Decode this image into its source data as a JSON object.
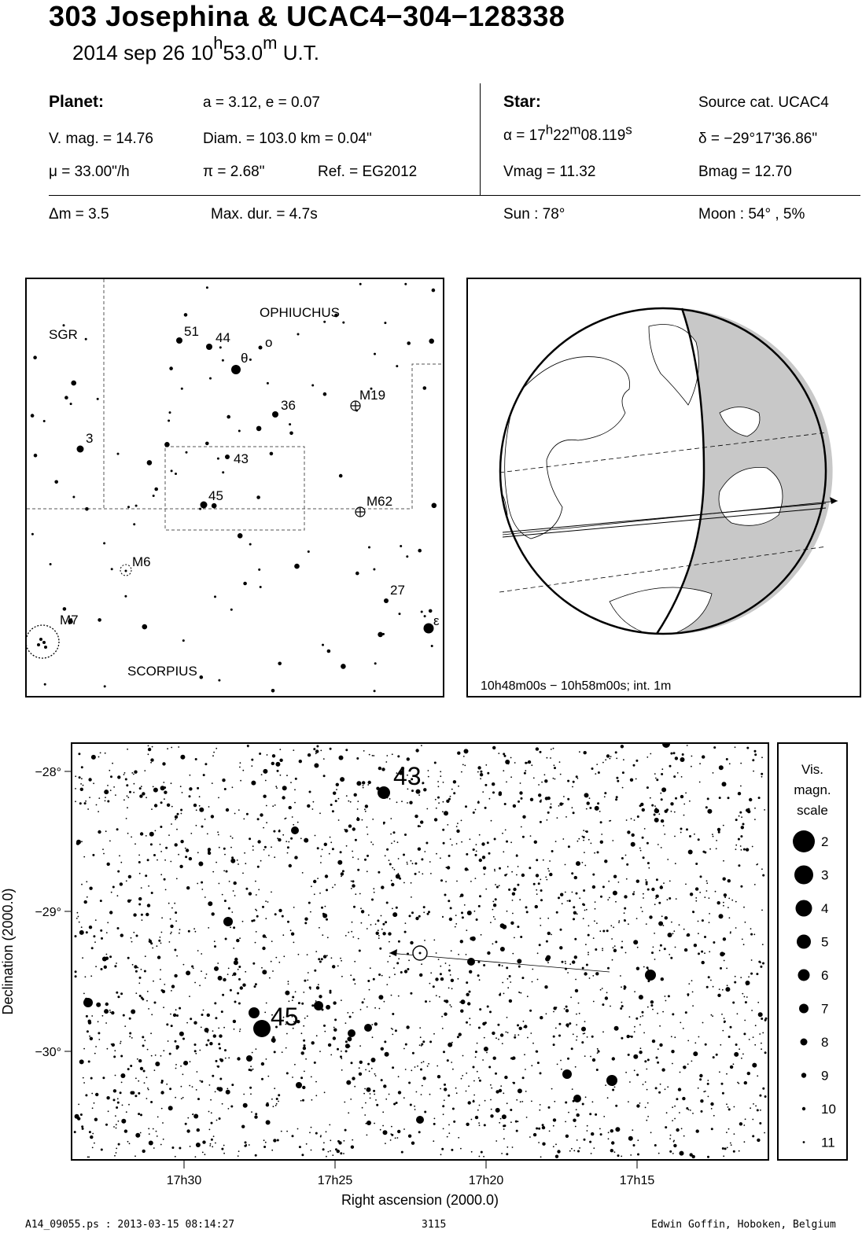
{
  "header": {
    "title": "303 Josephina  &  UCAC4−304−128338",
    "date": "2014 sep 26  10",
    "time_h_sup": "h",
    "time_min": "53.0",
    "time_m_sup": "m",
    "time_suffix": " U.T."
  },
  "planet": {
    "heading": "Planet:",
    "orbit": "a = 3.12, e = 0.07",
    "vmag": "V. mag. = 14.76",
    "diam": "Diam. = 103.0 km = 0.04\"",
    "mu": "μ =  33.00\"/h",
    "pi": "π =  2.68\"",
    "ref": "Ref. = EG2012"
  },
  "star": {
    "heading": "Star:",
    "source": "Source cat.  UCAC4",
    "alpha_pre": "α = 17",
    "alpha_h": "h",
    "alpha_mid": "22",
    "alpha_m": "m",
    "alpha_sec": "08.119",
    "alpha_s": "s",
    "delta": "δ = −29°17'36.86\"",
    "vmag": "Vmag = 11.32",
    "bmag": "Bmag = 12.70"
  },
  "event": {
    "dm": "Δm = 3.5",
    "maxdur": "Max. dur. = 4.7s",
    "sun": "Sun :  78°",
    "moon": "Moon :  54° ,  5%"
  },
  "constellation_map": {
    "labels": {
      "sgr": "SGR",
      "oph": "OPHIUCHUS",
      "sco": "SCORPIUS",
      "m19": "M19",
      "m62": "M62",
      "m6": "M6",
      "m7": "M7",
      "s51": "51",
      "s44": "44",
      "theta": "θ",
      "omicron": "ο",
      "s36": "36",
      "s3": "3",
      "s43": "43",
      "s45": "45",
      "s27": "27",
      "eps": "ε"
    }
  },
  "globe_panel": {
    "caption": "10h48m00s − 10h58m00s; int.  1m"
  },
  "star_chart": {
    "y_ticks": [
      "−28°",
      "−29°",
      "−30°"
    ],
    "x_ticks": [
      "17h30",
      "17h25",
      "17h20",
      "17h15"
    ],
    "xlabel": "Right ascension (2000.0)",
    "ylabel": "Declination (2000.0)",
    "label_43": "43",
    "label_45": "45"
  },
  "magnitude_scale": {
    "title_lines": [
      "Vis.",
      "magn.",
      "scale"
    ],
    "mags": [
      "2",
      "3",
      "4",
      "5",
      "6",
      "7",
      "8",
      "9",
      "10",
      "11"
    ]
  },
  "footer": {
    "file": "A14_09055.ps : 2013-03-15 08:14:27",
    "number": "3115",
    "author": "Edwin Goffin, Hoboken, Belgium"
  },
  "colors": {
    "ink": "#000000",
    "night_side": "#c8c8c8",
    "paper": "#ffffff"
  }
}
